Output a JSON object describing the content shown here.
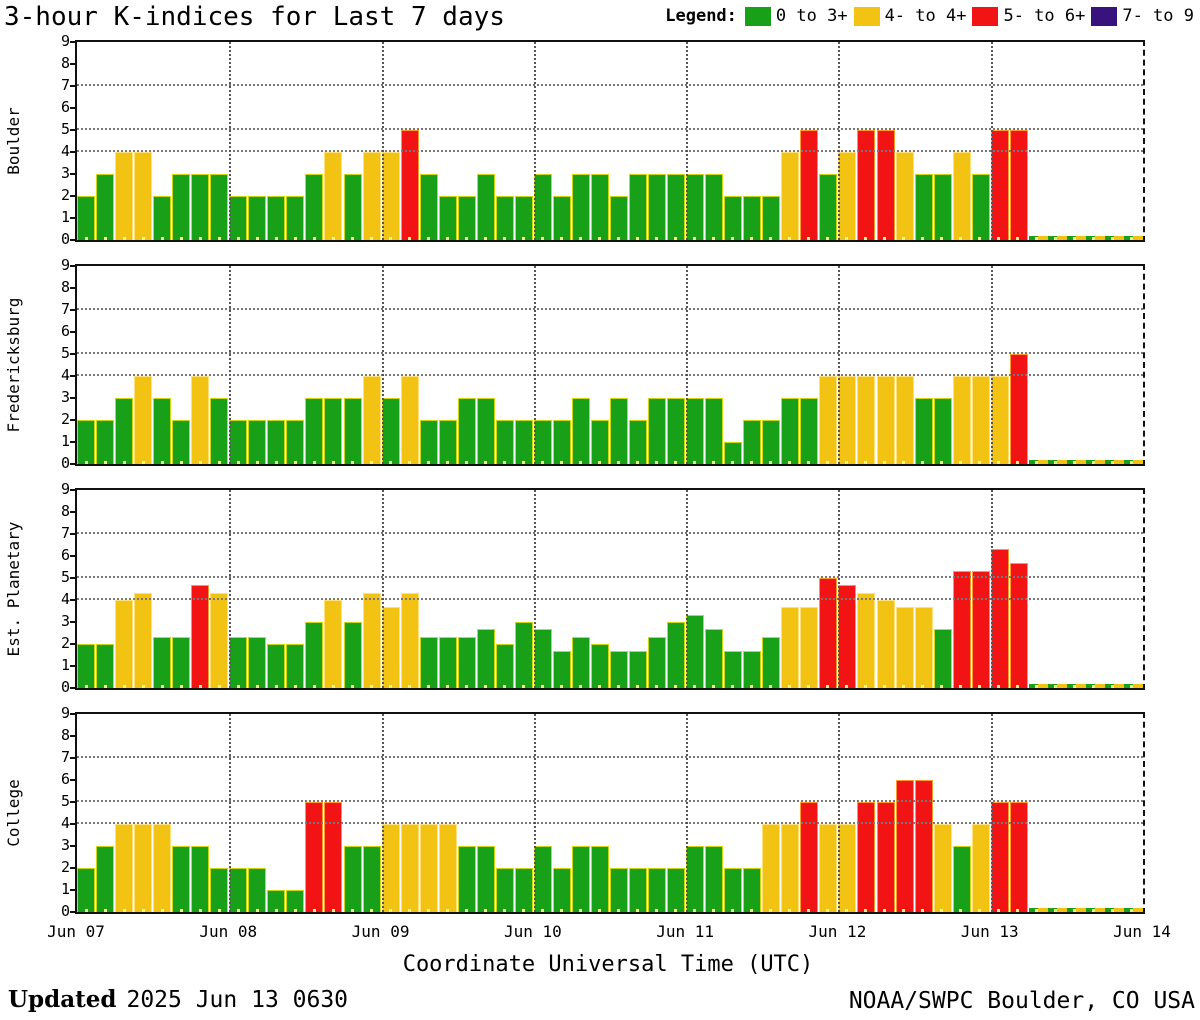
{
  "title": "3-hour K-indices for Last 7 days",
  "legend": {
    "label": "Legend:",
    "items": [
      {
        "label": "0 to 3+",
        "color": "#18A018"
      },
      {
        "label": "4- to 4+",
        "color": "#F2C312"
      },
      {
        "label": "5- to 6+",
        "color": "#F21414"
      },
      {
        "label": "7- to 9",
        "color": "#38127D"
      }
    ]
  },
  "chart_data": {
    "type": "bar",
    "ylim": [
      0,
      9
    ],
    "yticks": [
      0,
      1,
      2,
      3,
      4,
      5,
      6,
      7,
      8,
      9
    ],
    "hgridlines_at_k": [
      4,
      5,
      7
    ],
    "vgridlines": "daily",
    "bars_per_day": 8,
    "hours_per_bar": 3,
    "x_tick_labels": [
      "Jun 07",
      "Jun 08",
      "Jun 09",
      "Jun 10",
      "Jun 11",
      "Jun 12",
      "Jun 13",
      "Jun 14"
    ],
    "xlabel": "Coordinate Universal Time (UTC)",
    "color_thresholds": [
      {
        "max": 3.5,
        "class": "bar-g",
        "color": "#18A018"
      },
      {
        "max": 4.5,
        "class": "bar-y",
        "color": "#F2C312"
      },
      {
        "max": 6.5,
        "class": "bar-r",
        "color": "#F21414"
      },
      {
        "max": 9.0,
        "class": "bar-p",
        "color": "#38127D"
      }
    ],
    "panels": [
      {
        "station": "Boulder",
        "values": [
          2,
          3,
          4,
          4,
          2,
          3,
          3,
          3,
          2,
          2,
          2,
          2,
          3,
          4,
          3,
          4,
          4,
          5,
          3,
          2,
          2,
          3,
          2,
          2,
          3,
          2,
          3,
          3,
          2,
          3,
          3,
          3,
          3,
          3,
          2,
          2,
          2,
          4,
          5,
          3,
          4,
          5,
          5,
          4,
          3,
          3,
          4,
          3,
          5,
          5,
          null,
          null,
          null,
          null,
          null,
          null
        ]
      },
      {
        "station": "Fredericksburg",
        "values": [
          2,
          2,
          3,
          4,
          3,
          2,
          4,
          3,
          2,
          2,
          2,
          2,
          3,
          3,
          3,
          4,
          3,
          4,
          2,
          2,
          3,
          3,
          2,
          2,
          2,
          2,
          3,
          2,
          3,
          2,
          3,
          3,
          3,
          3,
          1,
          2,
          2,
          3,
          3,
          4,
          4,
          4,
          4,
          4,
          3,
          3,
          4,
          4,
          4,
          5,
          null,
          null,
          null,
          null,
          null,
          null
        ]
      },
      {
        "station": "Est. Planetary",
        "values": [
          2,
          2,
          4,
          4.33,
          2.33,
          2.33,
          4.67,
          4.33,
          2.33,
          2.33,
          2,
          2,
          3,
          4,
          3,
          4.33,
          3.67,
          4.33,
          2.33,
          2.33,
          2.33,
          2.67,
          2,
          3,
          2.67,
          1.67,
          2.33,
          2,
          1.67,
          1.67,
          2.33,
          3,
          3.33,
          2.67,
          1.67,
          1.67,
          2.33,
          3.67,
          3.67,
          5,
          4.67,
          4.33,
          4,
          3.67,
          3.67,
          2.67,
          5.33,
          5.33,
          6.33,
          5.67,
          null,
          null,
          null,
          null,
          null,
          null
        ]
      },
      {
        "station": "College",
        "values": [
          2,
          3,
          4,
          4,
          4,
          3,
          3,
          2,
          2,
          2,
          1,
          1,
          5,
          5,
          3,
          3,
          4,
          4,
          4,
          4,
          3,
          3,
          2,
          2,
          3,
          2,
          3,
          3,
          2,
          2,
          2,
          2,
          3,
          3,
          2,
          2,
          4,
          4,
          5,
          4,
          4,
          5,
          5,
          6,
          6,
          4,
          3,
          4,
          5,
          5,
          null,
          null,
          null,
          null,
          null,
          null
        ]
      }
    ]
  },
  "footer": {
    "updated_label": "Updated",
    "updated_value": "2025 Jun 13 0630",
    "source": "NOAA/SWPC Boulder, CO USA"
  }
}
